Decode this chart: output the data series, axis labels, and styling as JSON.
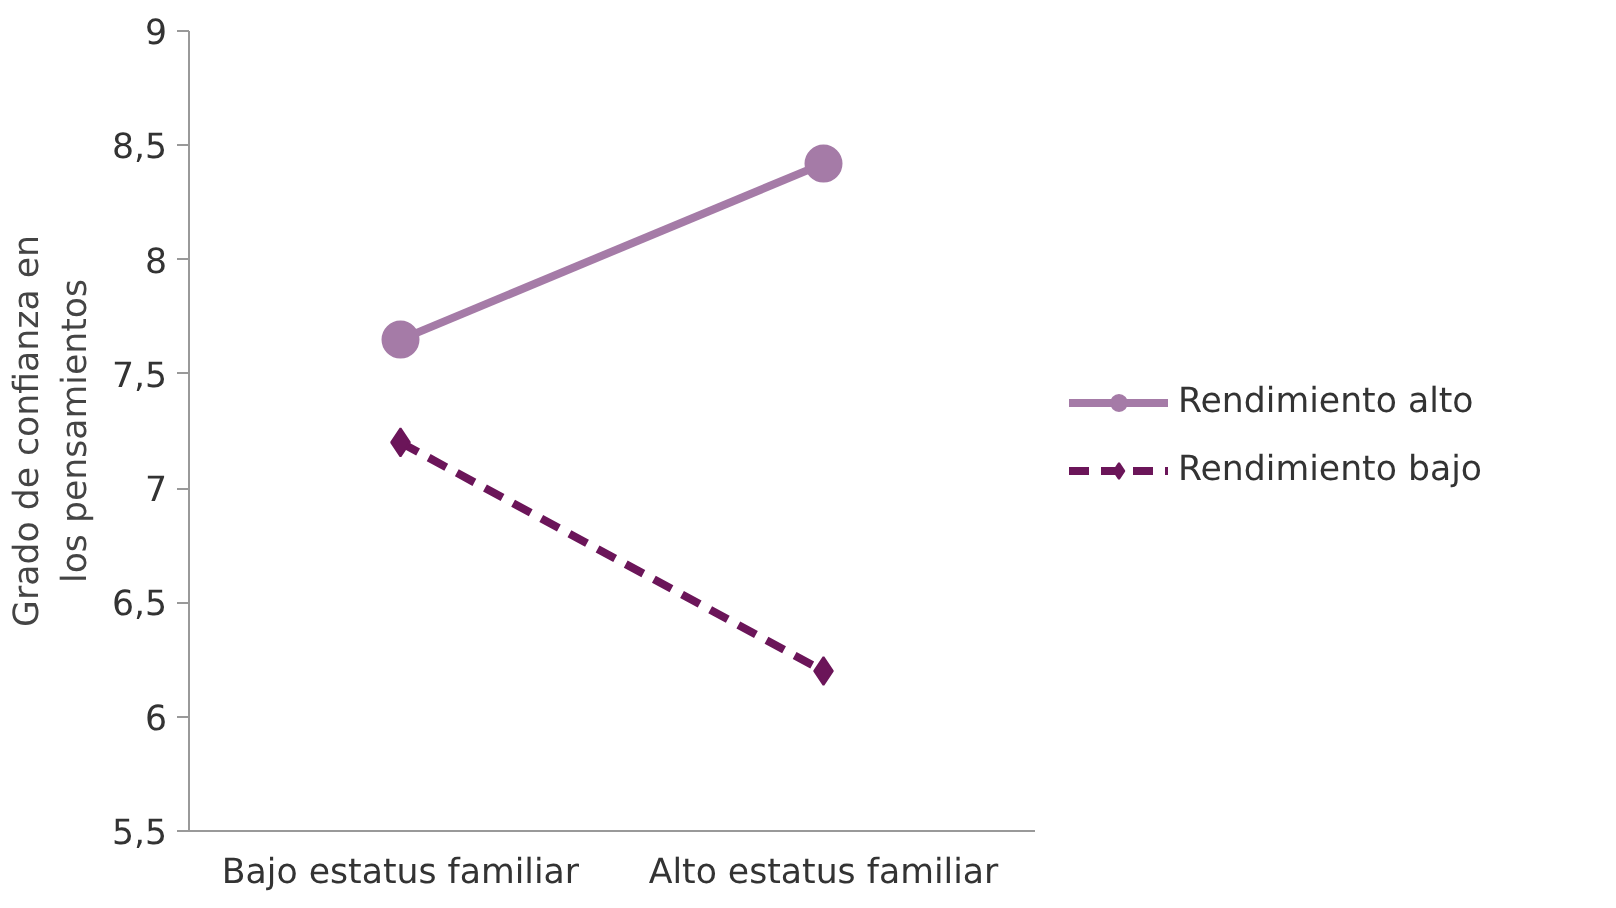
{
  "chart_data": {
    "type": "line",
    "ylabel": "Grado de confianza en los pensamientos",
    "categories": [
      "Bajo estatus familiar",
      "Alto estatus familiar"
    ],
    "ylim": [
      5.5,
      9
    ],
    "yticks": [
      {
        "value": 5.5,
        "label": "5,5"
      },
      6,
      {
        "value": 6.5,
        "label": "6,5"
      },
      7,
      {
        "value": 7.5,
        "label": "7,5"
      },
      8,
      {
        "value": 8.5,
        "label": "8,5"
      },
      9
    ],
    "grid": false,
    "legend": "right",
    "series": [
      {
        "name": "Rendimiento alto",
        "color": "#a57ba7",
        "values": [
          7.65,
          8.42
        ],
        "marker": "circle",
        "line_style": "solid"
      },
      {
        "name": "Rendimiento bajo",
        "color": "#6b1559",
        "values": [
          7.2,
          6.2
        ],
        "marker": "diamond",
        "line_style": "dashed"
      }
    ]
  }
}
